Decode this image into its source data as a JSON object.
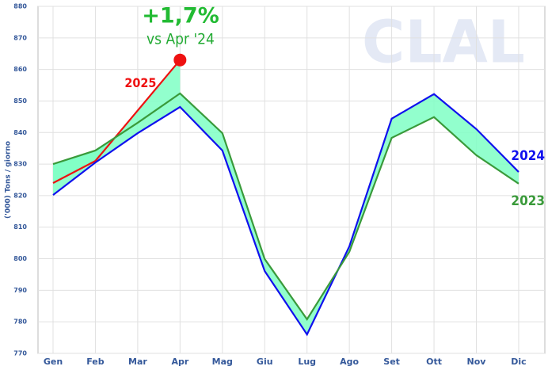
{
  "chart_data": {
    "type": "line",
    "watermark": "CLAL",
    "ylabel": "('000) Tons / giorno",
    "annotation": "+1,7%",
    "annotation_sub": "vs Apr '24",
    "categories": [
      "Gen",
      "Feb",
      "Mar",
      "Apr",
      "Mag",
      "Giu",
      "Lug",
      "Ago",
      "Set",
      "Ott",
      "Nov",
      "Dic"
    ],
    "series": [
      {
        "name": "2025",
        "color": "#ee1111",
        "values": [
          824,
          831,
          847,
          863,
          null,
          null,
          null,
          null,
          null,
          null,
          null,
          null
        ]
      },
      {
        "name": "2024",
        "color": "#1010ee",
        "values": [
          820.2,
          830.5,
          839.8,
          848.1,
          834.3,
          796.1,
          776,
          803.9,
          844.4,
          852.2,
          841.1,
          827.5
        ]
      },
      {
        "name": "2023",
        "color": "#3a9a3a",
        "values": [
          830,
          834.3,
          843.1,
          852.4,
          839.8,
          799.9,
          780.8,
          802.2,
          838.3,
          844.9,
          832.8,
          823.8
        ]
      }
    ],
    "ylim": [
      770,
      880
    ],
    "yticks": [
      770,
      780,
      790,
      800,
      810,
      820,
      830,
      840,
      850,
      860,
      870,
      880
    ],
    "grid": true
  }
}
